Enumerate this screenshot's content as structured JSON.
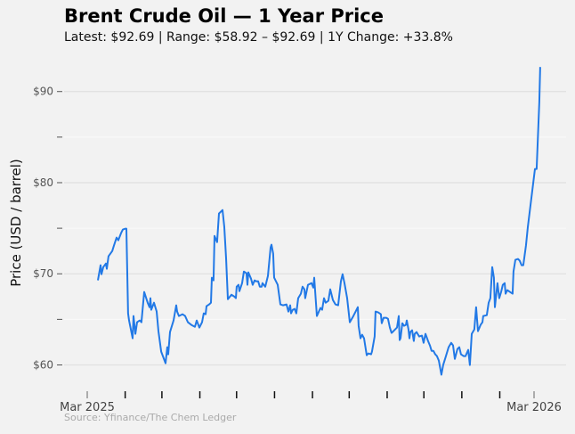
{
  "chart_data": {
    "type": "line",
    "title": "Brent Crude Oil — 1 Year Price",
    "subtitle": "Latest: $92.69  |  Range: $58.92 – $92.69  |  1Y Change: +33.8%",
    "xlabel": "",
    "ylabel": "Price (USD / barrel)",
    "source": "Source: Yfinance/The Chem Ledger",
    "x_units": "days since 2025-03-01",
    "xlim": [
      -21,
      398
    ],
    "ylim": [
      57.8,
      93.2
    ],
    "grid": true,
    "line_color": "#2279e6",
    "y_ticks": [
      {
        "value": 90,
        "label": "$90"
      },
      {
        "value": 85,
        "label": ""
      },
      {
        "value": 80,
        "label": "$80"
      },
      {
        "value": 75,
        "label": ""
      },
      {
        "value": 70,
        "label": "$70"
      },
      {
        "value": 65,
        "label": ""
      },
      {
        "value": 60,
        "label": "$60"
      }
    ],
    "x_ticks": [
      {
        "value": 0,
        "label": "Mar 2025"
      },
      {
        "value": 31,
        "label": ""
      },
      {
        "value": 61,
        "label": ""
      },
      {
        "value": 92,
        "label": ""
      },
      {
        "value": 122,
        "label": ""
      },
      {
        "value": 153,
        "label": ""
      },
      {
        "value": 184,
        "label": ""
      },
      {
        "value": 214,
        "label": ""
      },
      {
        "value": 245,
        "label": ""
      },
      {
        "value": 275,
        "label": ""
      },
      {
        "value": 306,
        "label": ""
      },
      {
        "value": 337,
        "label": ""
      },
      {
        "value": 365,
        "label": "Mar 2026"
      }
    ],
    "series": [
      {
        "name": "Brent Crude Oil",
        "points": [
          [
            8.7,
            69.28
          ],
          [
            10.9,
            70.94
          ],
          [
            11.6,
            69.96
          ],
          [
            13.1,
            70.74
          ],
          [
            15.3,
            71.13
          ],
          [
            16.0,
            70.55
          ],
          [
            17.4,
            71.92
          ],
          [
            20.4,
            72.5
          ],
          [
            21.8,
            73.09
          ],
          [
            24.0,
            73.97
          ],
          [
            25.4,
            73.68
          ],
          [
            27.6,
            74.46
          ],
          [
            29.1,
            74.85
          ],
          [
            31.3,
            74.95
          ],
          [
            32.0,
            74.95
          ],
          [
            33.4,
            65.66
          ],
          [
            34.2,
            64.88
          ],
          [
            37.1,
            62.92
          ],
          [
            37.8,
            65.37
          ],
          [
            39.3,
            63.41
          ],
          [
            40.7,
            64.68
          ],
          [
            42.9,
            64.88
          ],
          [
            44.3,
            64.68
          ],
          [
            46.5,
            68.01
          ],
          [
            49.4,
            66.83
          ],
          [
            50.9,
            66.34
          ],
          [
            51.6,
            67.32
          ],
          [
            52.3,
            66.05
          ],
          [
            54.5,
            66.83
          ],
          [
            56.7,
            65.86
          ],
          [
            58.2,
            63.71
          ],
          [
            60.4,
            61.46
          ],
          [
            61.8,
            60.97
          ],
          [
            64.0,
            60.19
          ],
          [
            65.4,
            61.95
          ],
          [
            66.2,
            61.16
          ],
          [
            67.6,
            63.61
          ],
          [
            70.5,
            64.88
          ],
          [
            72.7,
            66.54
          ],
          [
            73.4,
            65.86
          ],
          [
            74.9,
            65.37
          ],
          [
            77.8,
            65.56
          ],
          [
            80.0,
            65.37
          ],
          [
            82.2,
            64.68
          ],
          [
            85.1,
            64.39
          ],
          [
            88.0,
            64.19
          ],
          [
            89.4,
            64.88
          ],
          [
            91.6,
            64.1
          ],
          [
            93.8,
            64.68
          ],
          [
            95.2,
            65.66
          ],
          [
            96.7,
            65.56
          ],
          [
            97.4,
            66.44
          ],
          [
            99.6,
            66.64
          ],
          [
            101.1,
            66.83
          ],
          [
            101.8,
            69.57
          ],
          [
            103.2,
            69.28
          ],
          [
            104.0,
            74.16
          ],
          [
            106.1,
            73.48
          ],
          [
            107.6,
            76.61
          ],
          [
            110.5,
            77.0
          ],
          [
            112.0,
            75.14
          ],
          [
            113.4,
            71.72
          ],
          [
            114.9,
            67.22
          ],
          [
            117.8,
            67.71
          ],
          [
            120.0,
            67.52
          ],
          [
            121.4,
            67.32
          ],
          [
            122.1,
            68.59
          ],
          [
            123.6,
            68.79
          ],
          [
            124.3,
            68.1
          ],
          [
            126.5,
            68.98
          ],
          [
            128.0,
            70.25
          ],
          [
            130.1,
            70.06
          ],
          [
            130.9,
            68.79
          ],
          [
            131.6,
            70.16
          ],
          [
            133.8,
            69.47
          ],
          [
            135.2,
            68.79
          ],
          [
            136.7,
            69.28
          ],
          [
            138.1,
            69.18
          ],
          [
            139.6,
            69.18
          ],
          [
            141.0,
            68.59
          ],
          [
            142.5,
            68.59
          ],
          [
            143.2,
            68.98
          ],
          [
            145.4,
            68.59
          ],
          [
            147.6,
            69.77
          ],
          [
            149.8,
            72.89
          ],
          [
            150.5,
            73.19
          ],
          [
            151.9,
            72.21
          ],
          [
            152.7,
            69.57
          ],
          [
            155.6,
            68.79
          ],
          [
            157.8,
            66.64
          ],
          [
            159.9,
            66.54
          ],
          [
            162.8,
            66.64
          ],
          [
            164.3,
            65.86
          ],
          [
            165.8,
            66.54
          ],
          [
            166.5,
            65.66
          ],
          [
            167.9,
            66.05
          ],
          [
            169.4,
            66.15
          ],
          [
            170.8,
            65.66
          ],
          [
            172.3,
            67.32
          ],
          [
            174.5,
            67.81
          ],
          [
            175.9,
            68.59
          ],
          [
            177.4,
            68.3
          ],
          [
            178.1,
            67.32
          ],
          [
            180.3,
            68.79
          ],
          [
            183.2,
            68.98
          ],
          [
            184.7,
            68.49
          ],
          [
            185.4,
            69.57
          ],
          [
            187.6,
            65.37
          ],
          [
            190.5,
            66.25
          ],
          [
            191.9,
            66.05
          ],
          [
            193.4,
            67.32
          ],
          [
            194.8,
            66.83
          ],
          [
            197.0,
            67.03
          ],
          [
            198.5,
            68.3
          ],
          [
            200.7,
            67.13
          ],
          [
            202.8,
            66.64
          ],
          [
            205.0,
            66.54
          ],
          [
            207.2,
            69.18
          ],
          [
            208.6,
            69.96
          ],
          [
            210.1,
            68.98
          ],
          [
            212.3,
            67.32
          ],
          [
            214.5,
            64.68
          ],
          [
            217.4,
            65.37
          ],
          [
            219.6,
            65.95
          ],
          [
            221.0,
            66.34
          ],
          [
            221.7,
            64.29
          ],
          [
            223.2,
            62.92
          ],
          [
            224.6,
            63.31
          ],
          [
            226.1,
            62.92
          ],
          [
            228.3,
            61.07
          ],
          [
            229.7,
            61.26
          ],
          [
            231.9,
            61.16
          ],
          [
            232.6,
            61.46
          ],
          [
            234.8,
            63.12
          ],
          [
            235.5,
            65.86
          ],
          [
            237.7,
            65.76
          ],
          [
            239.9,
            65.56
          ],
          [
            240.6,
            64.58
          ],
          [
            242.1,
            65.17
          ],
          [
            244.3,
            65.17
          ],
          [
            245.7,
            65.07
          ],
          [
            247.2,
            64.1
          ],
          [
            248.6,
            63.51
          ],
          [
            250.1,
            63.71
          ],
          [
            253.0,
            64.1
          ],
          [
            254.5,
            65.37
          ],
          [
            255.2,
            62.73
          ],
          [
            255.9,
            62.92
          ],
          [
            257.4,
            64.58
          ],
          [
            258.8,
            64.29
          ],
          [
            260.3,
            64.39
          ],
          [
            261.0,
            64.88
          ],
          [
            262.4,
            63.9
          ],
          [
            263.2,
            62.92
          ],
          [
            263.9,
            63.61
          ],
          [
            265.4,
            63.8
          ],
          [
            266.8,
            62.63
          ],
          [
            267.5,
            63.41
          ],
          [
            269.0,
            63.61
          ],
          [
            271.2,
            63.12
          ],
          [
            273.4,
            63.22
          ],
          [
            274.8,
            62.43
          ],
          [
            276.3,
            63.41
          ],
          [
            278.4,
            62.63
          ],
          [
            279.9,
            62.14
          ],
          [
            281.3,
            61.55
          ],
          [
            282.8,
            61.55
          ],
          [
            284.3,
            61.16
          ],
          [
            285.7,
            60.97
          ],
          [
            287.2,
            60.48
          ],
          [
            289.3,
            58.92
          ],
          [
            290.8,
            59.99
          ],
          [
            293.0,
            60.97
          ],
          [
            295.2,
            61.95
          ],
          [
            297.3,
            62.43
          ],
          [
            298.8,
            62.14
          ],
          [
            300.3,
            60.67
          ],
          [
            302.4,
            61.75
          ],
          [
            303.9,
            61.95
          ],
          [
            305.3,
            61.16
          ],
          [
            307.5,
            60.97
          ],
          [
            309.0,
            60.97
          ],
          [
            311.2,
            61.65
          ],
          [
            312.6,
            59.99
          ],
          [
            314.1,
            63.41
          ],
          [
            316.2,
            63.9
          ],
          [
            317.7,
            66.34
          ],
          [
            319.2,
            63.71
          ],
          [
            321.3,
            64.39
          ],
          [
            322.8,
            64.68
          ],
          [
            323.5,
            65.37
          ],
          [
            326.4,
            65.46
          ],
          [
            327.9,
            66.83
          ],
          [
            329.3,
            67.32
          ],
          [
            330.8,
            70.74
          ],
          [
            332.2,
            69.57
          ],
          [
            333.0,
            66.34
          ],
          [
            335.1,
            68.98
          ],
          [
            336.6,
            67.32
          ],
          [
            338.1,
            68.01
          ],
          [
            339.5,
            68.79
          ],
          [
            341.0,
            68.98
          ],
          [
            341.7,
            67.81
          ],
          [
            343.2,
            68.2
          ],
          [
            345.3,
            68.01
          ],
          [
            347.5,
            67.81
          ],
          [
            348.2,
            70.25
          ],
          [
            349.7,
            71.53
          ],
          [
            351.9,
            71.63
          ],
          [
            353.3,
            71.43
          ],
          [
            354.8,
            70.94
          ],
          [
            356.2,
            70.94
          ],
          [
            358.4,
            73.09
          ],
          [
            359.9,
            75.14
          ],
          [
            365.7,
            81.5
          ],
          [
            367.1,
            81.5
          ],
          [
            369.3,
            88.83
          ],
          [
            370.0,
            92.69
          ]
        ]
      }
    ]
  }
}
